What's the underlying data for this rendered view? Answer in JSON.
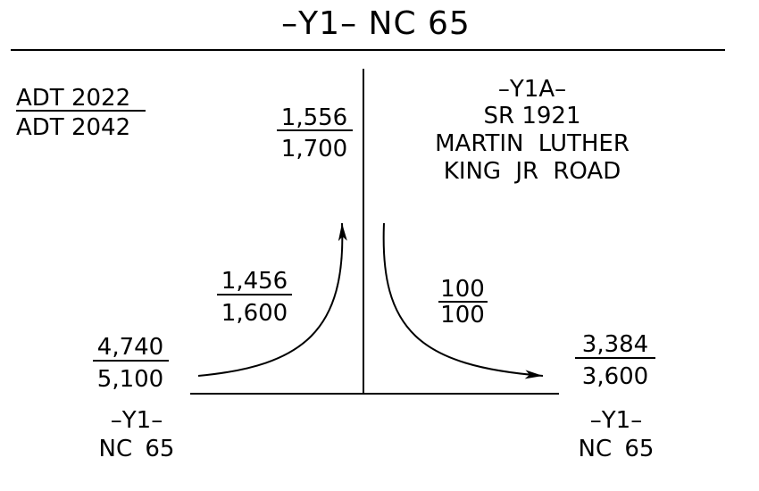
{
  "title": "–Y1– NC 65",
  "legend": {
    "current_label": "ADT 2022",
    "future_label": "ADT 2042"
  },
  "north_leg": {
    "current": "1,556",
    "future": "1,700",
    "name_lines": [
      "–Y1A–",
      "SR 1921",
      "MARTIN LUTHER",
      "KING JR ROAD"
    ]
  },
  "west_leg": {
    "current": "4,740",
    "future": "5,100",
    "name_lines": [
      "–Y1–",
      "NC 65"
    ]
  },
  "east_leg": {
    "current": "3,384",
    "future": "3,600",
    "name_lines": [
      "–Y1–",
      "NC 65"
    ]
  },
  "turn_west_north": {
    "current": "1,456",
    "future": "1,600"
  },
  "turn_north_east": {
    "current": "100",
    "future": "100"
  }
}
